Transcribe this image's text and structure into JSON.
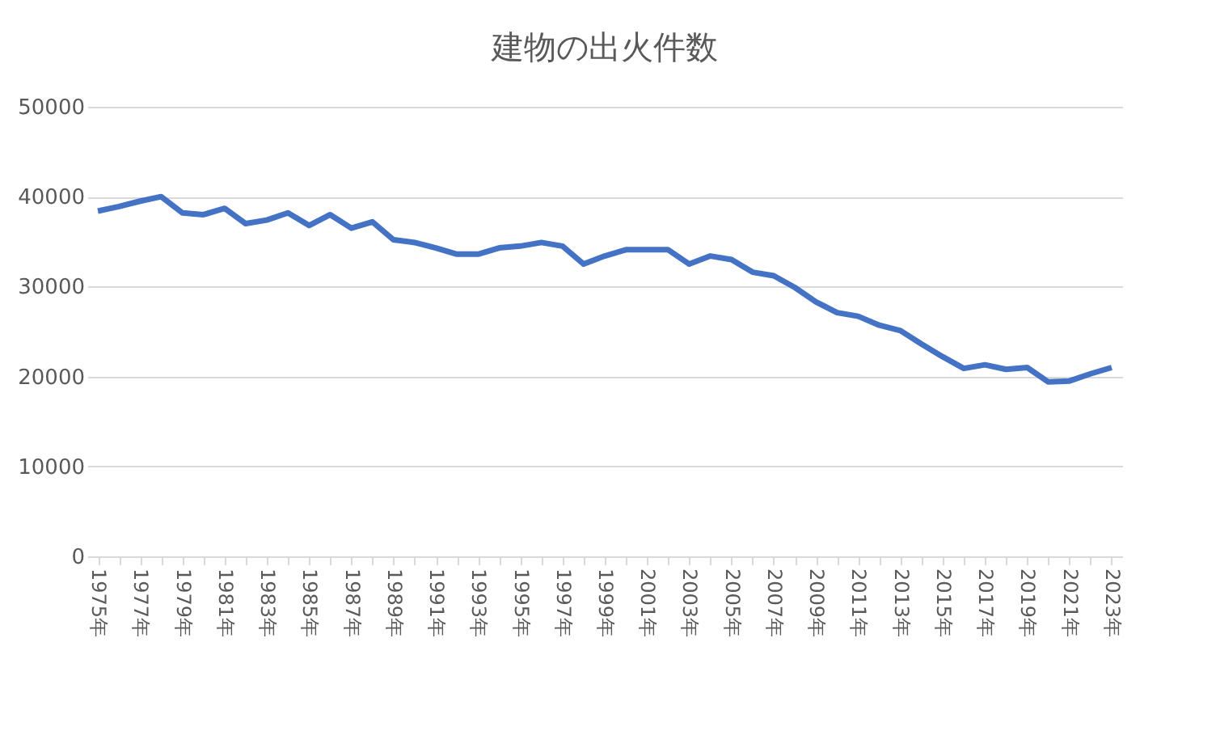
{
  "chart_data": {
    "type": "line",
    "title": "建物の出火件数",
    "categories": [
      "1975年",
      null,
      "1977年",
      null,
      "1979年",
      null,
      "1981年",
      null,
      "1983年",
      null,
      "1985年",
      null,
      "1987年",
      null,
      "1989年",
      null,
      "1991年",
      null,
      "1993年",
      null,
      "1995年",
      null,
      "1997年",
      null,
      "1999年",
      null,
      "2001年",
      null,
      "2003年",
      null,
      "2005年",
      null,
      "2007年",
      null,
      "2009年",
      null,
      "2011年",
      null,
      "2013年",
      null,
      "2015年",
      null,
      "2017年",
      null,
      "2019年",
      null,
      "2021年",
      null,
      "2023年"
    ],
    "series": [
      {
        "color": "#4472c4",
        "values": [
          38400,
          38900,
          39500,
          40000,
          38200,
          38000,
          38700,
          37000,
          37400,
          38200,
          36800,
          38000,
          36500,
          37200,
          35200,
          34900,
          34300,
          33600,
          33600,
          34300,
          34500,
          34900,
          34500,
          32500,
          33400,
          34100,
          34100,
          34100,
          32500,
          33400,
          33000,
          31600,
          31200,
          29900,
          28300,
          27100,
          26700,
          25700,
          25100,
          23600,
          22200,
          20900,
          21300,
          20800,
          21000,
          19400,
          19500,
          20300,
          21000
        ]
      }
    ],
    "ylim": [
      0,
      50000
    ],
    "yticks": [
      0,
      10000,
      20000,
      30000,
      40000,
      50000
    ],
    "grid": "y",
    "legend": false,
    "marker": "none",
    "line_style": "solid"
  }
}
